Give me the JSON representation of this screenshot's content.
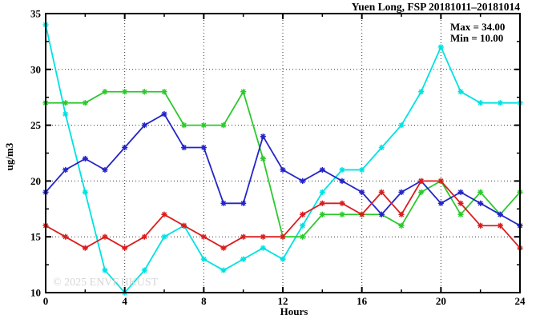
{
  "title": "Yuen Long, FSP 20181011–20181014",
  "legend": {
    "max_label": "Max = 34.00",
    "min_label": "Min = 10.00"
  },
  "watermark": "© 2025 ENVF,HKUST",
  "axes": {
    "x_label": "Hours",
    "y_label": "ug/m3"
  },
  "chart_data": {
    "type": "line",
    "title": "Yuen Long, FSP 20181011–20181014",
    "xlabel": "Hours",
    "ylabel": "ug/m3",
    "xlim": [
      0,
      24
    ],
    "ylim": [
      10,
      35
    ],
    "grid": true,
    "x_major_ticks": [
      0,
      4,
      8,
      12,
      16,
      20,
      24
    ],
    "x_minor_ticks": [
      2,
      6,
      10,
      14,
      18,
      22
    ],
    "y_major_ticks": [
      10,
      15,
      20,
      25,
      30,
      35
    ],
    "y_minor_ticks": [
      12.5,
      17.5,
      22.5,
      27.5,
      32.5
    ],
    "x_gridlines": [
      4,
      8,
      12,
      16,
      20
    ],
    "y_gridlines": [
      15,
      20,
      25,
      30
    ],
    "x": [
      0,
      1,
      2,
      3,
      4,
      5,
      6,
      7,
      8,
      9,
      10,
      11,
      12,
      13,
      14,
      15,
      16,
      17,
      18,
      19,
      20,
      21,
      22,
      23,
      24
    ],
    "series": [
      {
        "name": "cyan-series",
        "color": "#00e2e2",
        "marker": "asterisk",
        "values": [
          34,
          26,
          19,
          12,
          10,
          12,
          15,
          16,
          13,
          12,
          13,
          14,
          13,
          16,
          19,
          21,
          21,
          23,
          25,
          28,
          32,
          28,
          27,
          27,
          27
        ]
      },
      {
        "name": "green-series",
        "color": "#2cc92c",
        "marker": "asterisk",
        "values": [
          27,
          27,
          27,
          28,
          28,
          28,
          28,
          25,
          25,
          25,
          28,
          22,
          15,
          15,
          17,
          17,
          17,
          17,
          16,
          19,
          20,
          17,
          19,
          17,
          19
        ]
      },
      {
        "name": "blue-series",
        "color": "#2424c8",
        "marker": "asterisk",
        "values": [
          19,
          21,
          22,
          21,
          23,
          25,
          26,
          23,
          23,
          18,
          18,
          24,
          21,
          20,
          21,
          20,
          19,
          17,
          19,
          20,
          18,
          19,
          18,
          17,
          16
        ]
      },
      {
        "name": "red-series",
        "color": "#dc1c1c",
        "marker": "asterisk",
        "values": [
          16,
          15,
          14,
          15,
          14,
          15,
          17,
          16,
          15,
          14,
          15,
          15,
          15,
          17,
          18,
          18,
          17,
          19,
          17,
          20,
          20,
          18,
          16,
          16,
          14
        ]
      }
    ],
    "annotations": [
      "Max = 34.00",
      "Min = 10.00"
    ],
    "legend_position": "top-right-inside",
    "stats": {
      "max": 34.0,
      "min": 10.0
    }
  }
}
